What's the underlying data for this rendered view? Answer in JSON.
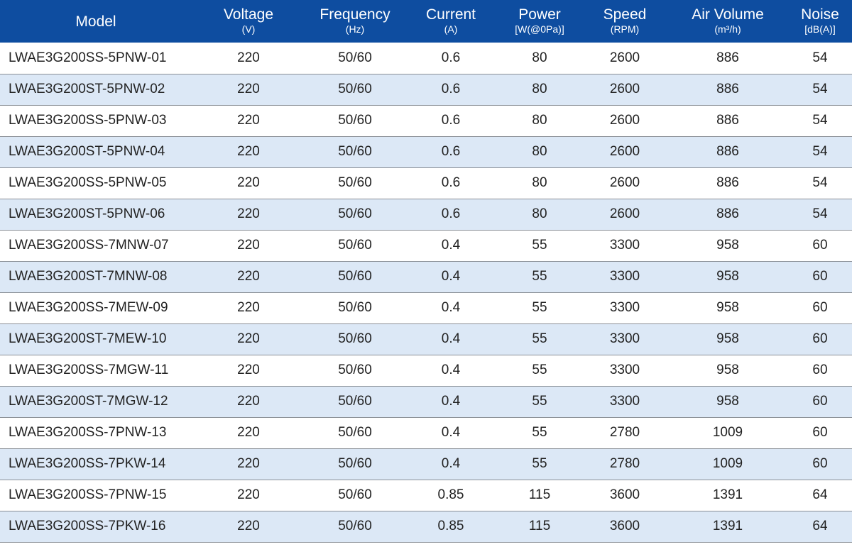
{
  "table": {
    "columns": [
      {
        "label": "Model",
        "unit": ""
      },
      {
        "label": "Voltage",
        "unit": "(V)"
      },
      {
        "label": "Frequency",
        "unit": "(Hz)"
      },
      {
        "label": "Current",
        "unit": "(A)"
      },
      {
        "label": "Power",
        "unit": "[W(@0Pa)]"
      },
      {
        "label": "Speed",
        "unit": "(RPM)"
      },
      {
        "label": "Air Volume",
        "unit": "(m³/h)"
      },
      {
        "label": "Noise",
        "unit": "[dB(A)]"
      }
    ],
    "rows": [
      [
        "LWAE3G200SS-5PNW-01",
        "220",
        "50/60",
        "0.6",
        "80",
        "2600",
        "886",
        "54"
      ],
      [
        "LWAE3G200ST-5PNW-02",
        "220",
        "50/60",
        "0.6",
        "80",
        "2600",
        "886",
        "54"
      ],
      [
        "LWAE3G200SS-5PNW-03",
        "220",
        "50/60",
        "0.6",
        "80",
        "2600",
        "886",
        "54"
      ],
      [
        "LWAE3G200ST-5PNW-04",
        "220",
        "50/60",
        "0.6",
        "80",
        "2600",
        "886",
        "54"
      ],
      [
        "LWAE3G200SS-5PNW-05",
        "220",
        "50/60",
        "0.6",
        "80",
        "2600",
        "886",
        "54"
      ],
      [
        "LWAE3G200ST-5PNW-06",
        "220",
        "50/60",
        "0.6",
        "80",
        "2600",
        "886",
        "54"
      ],
      [
        "LWAE3G200SS-7MNW-07",
        "220",
        "50/60",
        "0.4",
        "55",
        "3300",
        "958",
        "60"
      ],
      [
        "LWAE3G200ST-7MNW-08",
        "220",
        "50/60",
        "0.4",
        "55",
        "3300",
        "958",
        "60"
      ],
      [
        "LWAE3G200SS-7MEW-09",
        "220",
        "50/60",
        "0.4",
        "55",
        "3300",
        "958",
        "60"
      ],
      [
        "LWAE3G200ST-7MEW-10",
        "220",
        "50/60",
        "0.4",
        "55",
        "3300",
        "958",
        "60"
      ],
      [
        "LWAE3G200SS-7MGW-11",
        "220",
        "50/60",
        "0.4",
        "55",
        "3300",
        "958",
        "60"
      ],
      [
        "LWAE3G200ST-7MGW-12",
        "220",
        "50/60",
        "0.4",
        "55",
        "3300",
        "958",
        "60"
      ],
      [
        "LWAE3G200SS-7PNW-13",
        "220",
        "50/60",
        "0.4",
        "55",
        "2780",
        "1009",
        "60"
      ],
      [
        "LWAE3G200SS-7PKW-14",
        "220",
        "50/60",
        "0.4",
        "55",
        "2780",
        "1009",
        "60"
      ],
      [
        "LWAE3G200SS-7PNW-15",
        "220",
        "50/60",
        "0.85",
        "115",
        "3600",
        "1391",
        "64"
      ],
      [
        "LWAE3G200SS-7PKW-16",
        "220",
        "50/60",
        "0.85",
        "115",
        "3600",
        "1391",
        "64"
      ]
    ]
  },
  "colors": {
    "header_bg": "#0e4da0",
    "header_text": "#ffffff",
    "row_alt_bg": "#dce8f6",
    "row_bg": "#ffffff",
    "row_divider": "#8a8f96",
    "cell_text": "#222222"
  }
}
